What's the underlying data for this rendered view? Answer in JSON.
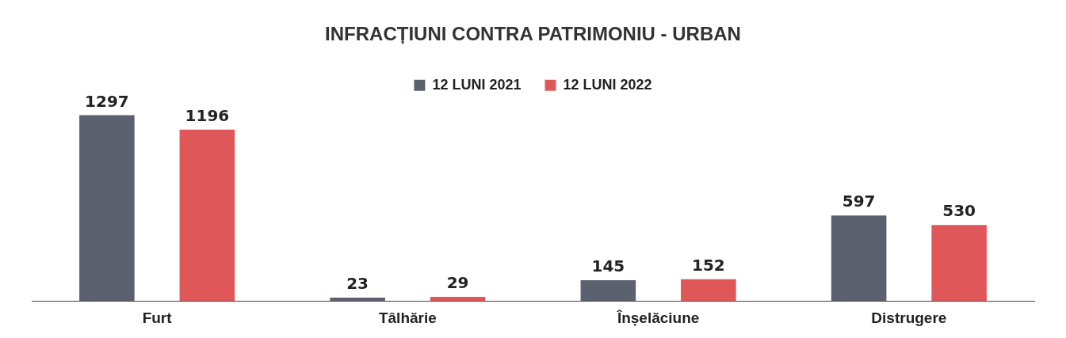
{
  "chart_data": {
    "type": "bar",
    "title": "INFRACȚIUNI CONTRA PATRIMONIU - URBAN",
    "categories": [
      "Furt",
      "Tâlhărie",
      "Înșelăciune",
      "Distrugere"
    ],
    "series": [
      {
        "name": "12 LUNI 2021",
        "color": "#5c6170",
        "values": [
          1297,
          23,
          145,
          597
        ]
      },
      {
        "name": "12 LUNI 2022",
        "color": "#e0575a",
        "values": [
          1196,
          29,
          152,
          530
        ]
      }
    ],
    "data_labels": true,
    "legend": "top"
  }
}
